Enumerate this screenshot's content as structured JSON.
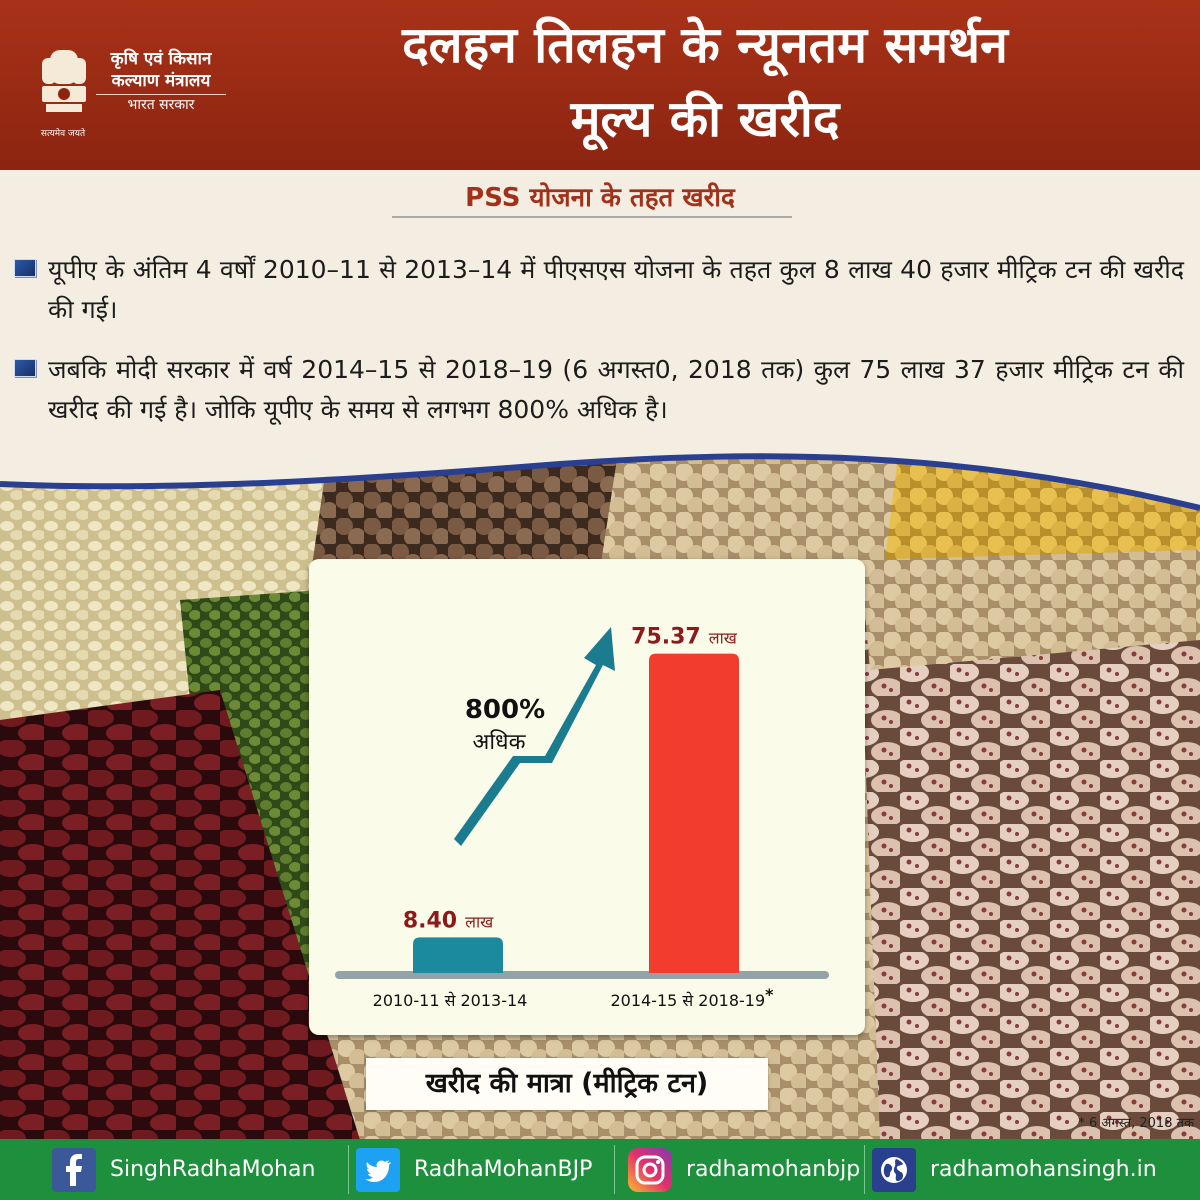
{
  "header": {
    "ministry_line1": "कृषि एवं किसान",
    "ministry_line2": "कल्याण मंत्रालय",
    "ministry_line3": "भारत सरकार",
    "motto": "सत्यमेव जयते",
    "title_line1": "दलहन तिलहन के न्यूनतम समर्थन",
    "title_line2": "मूल्य की खरीद"
  },
  "section_heading": "PSS योजना के तहत खरीद",
  "bullets": [
    "यूपीए के अंतिम 4 वर्षों 2010–11 से 2013–14 में पीएसएस योजना के तहत कुल 8 लाख 40 हजार मीट्रिक टन की खरीद की गई।",
    "जबकि मोदी सरकार में वर्ष 2014–15 से 2018–19 (6 अगस्त0, 2018 तक) कुल 75 लाख 37 हजार मीट्रिक टन की खरीद की गई है। जोकि यूपीए के समय से लगभग 800% अधिक है।"
  ],
  "chart_data": {
    "type": "bar",
    "categories": [
      "2010-11 से 2013-14",
      "2014-15 से 2018-19"
    ],
    "category_suffix": [
      "",
      "*"
    ],
    "values": [
      8.4,
      75.37
    ],
    "value_labels": [
      "8.40",
      "75.37"
    ],
    "unit_label": "लाख",
    "ylabel": "खरीद की मात्रा (मीट्रिक टन)",
    "ylim": [
      0,
      80
    ],
    "annotation": {
      "value": "800%",
      "text": "अधिक"
    },
    "colors": [
      "#1b8a9e",
      "#f23d2e"
    ],
    "arrow_color": "#1b7b8f",
    "value_label_color": "#8b1a1a",
    "grid": false
  },
  "footnote": "* 6 अगस्त, 2018 तक",
  "footer": {
    "facebook": "SinghRadhaMohan",
    "twitter": "RadhaMohanBJP",
    "instagram": "radhamohanbjp",
    "website": "radhamohansingh.in"
  }
}
